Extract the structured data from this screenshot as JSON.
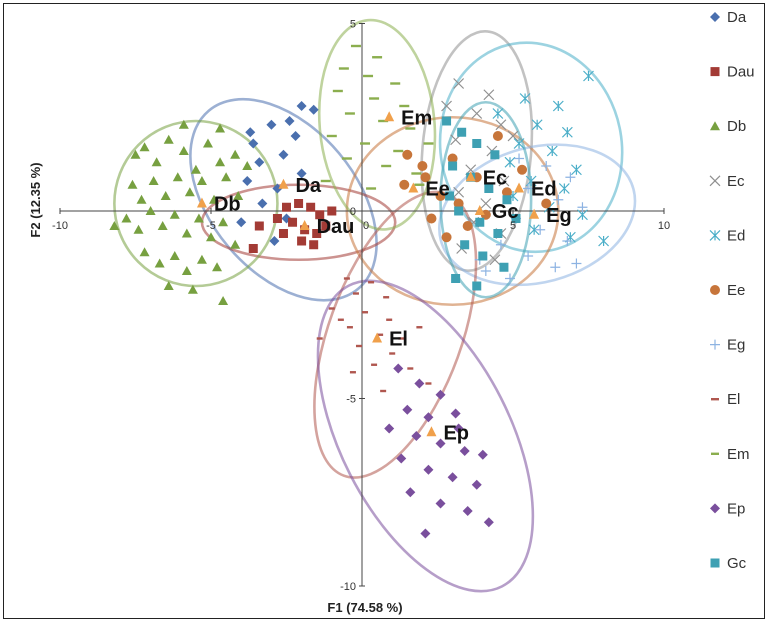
{
  "chart_data": {
    "type": "scatter",
    "xlabel": "F1 (74.58 %)",
    "ylabel": "F2 (12.35 %)",
    "xlim": [
      -10,
      10
    ],
    "ylim": [
      -10,
      5
    ],
    "x_ticks": [
      "-10",
      "-5",
      "0",
      "5",
      "10"
    ],
    "y_ticks": [
      "5",
      "0",
      "-5",
      "-10"
    ],
    "legend_position": "right",
    "series": [
      {
        "name": "Da",
        "color": "#4A6FAE",
        "marker": "diamond",
        "centroid": [
          -2.6,
          0.7
        ],
        "ellipse": {
          "cx": -2.6,
          "cy": 0.3,
          "rx": 2.4,
          "ry": 3.1,
          "angle": -40
        },
        "points": [
          [
            -2,
            2.8
          ],
          [
            -1.6,
            2.7
          ],
          [
            -2.4,
            2.4
          ],
          [
            -3,
            2.3
          ],
          [
            -2.2,
            2
          ],
          [
            -3.6,
            1.8
          ],
          [
            -2.6,
            1.5
          ],
          [
            -3.4,
            1.3
          ],
          [
            -2,
            1
          ],
          [
            -3.8,
            0.8
          ],
          [
            -2.8,
            0.6
          ],
          [
            -3.3,
            0.2
          ],
          [
            -2.5,
            -0.2
          ],
          [
            -4,
            -0.3
          ],
          [
            -2.9,
            -0.8
          ],
          [
            -3.7,
            2.1
          ]
        ]
      },
      {
        "name": "Dau",
        "color": "#A33B35",
        "marker": "square",
        "centroid": [
          -1.9,
          -0.4
        ],
        "ellipse": {
          "cx": -2.1,
          "cy": -0.3,
          "rx": 3.2,
          "ry": 1.0,
          "angle": 0
        },
        "points": [
          [
            -2.5,
            0.1
          ],
          [
            -2.1,
            0.2
          ],
          [
            -1.7,
            0.1
          ],
          [
            -1.4,
            -0.1
          ],
          [
            -2.3,
            -0.3
          ],
          [
            -1.9,
            -0.5
          ],
          [
            -1.5,
            -0.6
          ],
          [
            -2.6,
            -0.6
          ],
          [
            -2.8,
            -0.2
          ],
          [
            -1.2,
            -0.4
          ],
          [
            -2,
            -0.8
          ],
          [
            -1.6,
            -0.9
          ],
          [
            -3.4,
            -0.4
          ],
          [
            -3.6,
            -1
          ],
          [
            -1,
            0
          ]
        ]
      },
      {
        "name": "Db",
        "color": "#77A040",
        "marker": "triangle",
        "centroid": [
          -5.3,
          0.2
        ],
        "ellipse": {
          "cx": -5.5,
          "cy": 0.2,
          "rx": 2.7,
          "ry": 2.2,
          "angle": 0
        },
        "points": [
          [
            -7.5,
            1.5
          ],
          [
            -7.2,
            1.7
          ],
          [
            -6.8,
            1.3
          ],
          [
            -6.4,
            1.9
          ],
          [
            -5.9,
            1.6
          ],
          [
            -5.5,
            1.1
          ],
          [
            -5.1,
            1.8
          ],
          [
            -4.7,
            1.3
          ],
          [
            -4.2,
            1.5
          ],
          [
            -3.8,
            1.2
          ],
          [
            -7.6,
            0.7
          ],
          [
            -7.3,
            0.3
          ],
          [
            -6.9,
            0.8
          ],
          [
            -6.5,
            0.4
          ],
          [
            -6.1,
            0.9
          ],
          [
            -5.7,
            0.5
          ],
          [
            -5.3,
            0.8
          ],
          [
            -4.9,
            0.3
          ],
          [
            -4.5,
            0.9
          ],
          [
            -4.1,
            0.4
          ],
          [
            -7.8,
            -0.2
          ],
          [
            -7.4,
            -0.5
          ],
          [
            -7,
            0
          ],
          [
            -6.6,
            -0.4
          ],
          [
            -6.2,
            -0.1
          ],
          [
            -5.8,
            -0.6
          ],
          [
            -5.4,
            -0.2
          ],
          [
            -5,
            -0.7
          ],
          [
            -4.6,
            -0.3
          ],
          [
            -4.2,
            -0.9
          ],
          [
            -7.2,
            -1.1
          ],
          [
            -6.7,
            -1.4
          ],
          [
            -6.2,
            -1.2
          ],
          [
            -5.8,
            -1.6
          ],
          [
            -5.3,
            -1.3
          ],
          [
            -4.8,
            -1.5
          ],
          [
            -6.4,
            -2
          ],
          [
            -5.6,
            -2.1
          ],
          [
            -4.7,
            2.2
          ],
          [
            -5.9,
            2.3
          ],
          [
            -4.6,
            -2.4
          ],
          [
            -8.2,
            -0.4
          ]
        ]
      },
      {
        "name": "Ec",
        "color": "#8F8F8F",
        "marker": "x",
        "centroid": [
          3.6,
          0.9
        ],
        "ellipse": {
          "cx": 3.8,
          "cy": 1.6,
          "rx": 1.8,
          "ry": 3.2,
          "angle": 5
        },
        "points": [
          [
            3.2,
            3.4
          ],
          [
            4.2,
            3.1
          ],
          [
            3.8,
            2.6
          ],
          [
            4.6,
            2.3
          ],
          [
            3.1,
            1.9
          ],
          [
            4.3,
            1.6
          ],
          [
            3.6,
            1.1
          ],
          [
            4.7,
            0.8
          ],
          [
            3.2,
            0.5
          ],
          [
            4.1,
            0.2
          ],
          [
            3.7,
            -0.3
          ],
          [
            4.6,
            -0.6
          ],
          [
            3.3,
            -1
          ],
          [
            4.4,
            -1.3
          ],
          [
            5,
            2
          ],
          [
            2.8,
            2.8
          ]
        ]
      },
      {
        "name": "Ed",
        "color": "#4BAEC8",
        "marker": "asterisk",
        "centroid": [
          5.2,
          0.6
        ],
        "ellipse": {
          "cx": 5.6,
          "cy": 1.7,
          "rx": 3.0,
          "ry": 2.8,
          "angle": -10
        },
        "points": [
          [
            7.5,
            3.6
          ],
          [
            6.5,
            2.8
          ],
          [
            5.8,
            2.3
          ],
          [
            6.8,
            2.1
          ],
          [
            5.2,
            1.8
          ],
          [
            6.3,
            1.6
          ],
          [
            4.9,
            1.3
          ],
          [
            7.1,
            1.1
          ],
          [
            5.6,
            0.8
          ],
          [
            6.7,
            0.6
          ],
          [
            5,
            0.4
          ],
          [
            6.2,
            0.1
          ],
          [
            7.3,
            -0.1
          ],
          [
            5.7,
            -0.5
          ],
          [
            6.9,
            -0.7
          ],
          [
            8,
            -0.8
          ],
          [
            4.5,
            2.6
          ],
          [
            5.4,
            3
          ]
        ]
      },
      {
        "name": "Ee",
        "color": "#C7753A",
        "marker": "circle",
        "centroid": [
          1.7,
          0.6
        ],
        "ellipse": {
          "cx": 3.0,
          "cy": 0.0,
          "rx": 3.5,
          "ry": 2.5,
          "angle": 0
        },
        "points": [
          [
            1.5,
            1.5
          ],
          [
            2,
            1.2
          ],
          [
            1.4,
            0.7
          ],
          [
            2.6,
            0.4
          ],
          [
            3.2,
            0.2
          ],
          [
            2.3,
            -0.2
          ],
          [
            3.5,
            -0.4
          ],
          [
            2.8,
            -0.7
          ],
          [
            4.1,
            -0.1
          ],
          [
            4.8,
            0.5
          ],
          [
            5.3,
            1.1
          ],
          [
            6.1,
            0.2
          ],
          [
            3.8,
            0.9
          ],
          [
            4.5,
            2
          ],
          [
            2.1,
            0.9
          ],
          [
            3,
            1.4
          ]
        ]
      },
      {
        "name": "Eg",
        "color": "#8DB3E2",
        "marker": "plus",
        "centroid": [
          5.7,
          -0.1
        ],
        "ellipse": {
          "cx": 5.8,
          "cy": -0.1,
          "rx": 3.3,
          "ry": 1.8,
          "angle": -15
        },
        "points": [
          [
            5.2,
            1.4
          ],
          [
            6.1,
            1.2
          ],
          [
            6.9,
            0.9
          ],
          [
            5.5,
            0.6
          ],
          [
            6.5,
            0.3
          ],
          [
            7.3,
            0.1
          ],
          [
            5.1,
            -0.2
          ],
          [
            5.9,
            -0.5
          ],
          [
            6.8,
            -0.8
          ],
          [
            4.6,
            -0.9
          ],
          [
            5.5,
            -1.2
          ],
          [
            6.4,
            -1.5
          ],
          [
            7.1,
            -1.4
          ],
          [
            4.1,
            -1.6
          ],
          [
            4.9,
            -1.8
          ],
          [
            3.9,
            -1.3
          ]
        ]
      },
      {
        "name": "El",
        "color": "#B0574F",
        "marker": "dash",
        "centroid": [
          0.5,
          -3.4
        ],
        "ellipse": {
          "cx": 1.1,
          "cy": -3.3,
          "rx": 2.2,
          "ry": 4.0,
          "angle": 20
        },
        "points": [
          [
            -0.5,
            -1.8
          ],
          [
            0.3,
            -1.9
          ],
          [
            -0.2,
            -2.2
          ],
          [
            0.8,
            -2.3
          ],
          [
            -1,
            -2.6
          ],
          [
            0.1,
            -2.7
          ],
          [
            0.9,
            -2.9
          ],
          [
            -0.4,
            -3.1
          ],
          [
            0.6,
            -3.3
          ],
          [
            1.3,
            -3.4
          ],
          [
            -0.1,
            -3.6
          ],
          [
            1,
            -3.8
          ],
          [
            0.4,
            -4.1
          ],
          [
            1.6,
            -4.2
          ],
          [
            -0.7,
            -2.9
          ],
          [
            1.9,
            -3.1
          ],
          [
            -0.3,
            -4.3
          ],
          [
            2.2,
            -4.6
          ],
          [
            0.7,
            -4.8
          ],
          [
            -1.4,
            -3.4
          ]
        ]
      },
      {
        "name": "Em",
        "color": "#8BAE4E",
        "marker": "dash",
        "centroid": [
          0.9,
          2.5
        ],
        "ellipse": {
          "cx": 0.5,
          "cy": 2.3,
          "rx": 1.9,
          "ry": 2.8,
          "angle": -5
        },
        "points": [
          [
            -0.2,
            4.4
          ],
          [
            0.5,
            4.1
          ],
          [
            -0.6,
            3.8
          ],
          [
            0.2,
            3.6
          ],
          [
            1.1,
            3.4
          ],
          [
            -0.8,
            3.2
          ],
          [
            0.4,
            3
          ],
          [
            1.4,
            2.8
          ],
          [
            -0.4,
            2.6
          ],
          [
            0.7,
            2.4
          ],
          [
            1.6,
            2.2
          ],
          [
            -1,
            2
          ],
          [
            0.1,
            1.8
          ],
          [
            1.2,
            1.6
          ],
          [
            -0.5,
            1.4
          ],
          [
            0.8,
            1.2
          ],
          [
            1.8,
            1
          ],
          [
            -1.2,
            0.8
          ],
          [
            0.3,
            0.6
          ],
          [
            1.9,
            0.7
          ],
          [
            2.2,
            1.8
          ]
        ]
      },
      {
        "name": "Ep",
        "color": "#7A4F9D",
        "marker": "diamond",
        "centroid": [
          2.3,
          -5.9
        ],
        "ellipse": {
          "cx": 2.1,
          "cy": -6.0,
          "rx": 2.8,
          "ry": 4.5,
          "angle": -27
        },
        "points": [
          [
            1.2,
            -4.2
          ],
          [
            1.9,
            -4.6
          ],
          [
            2.6,
            -4.9
          ],
          [
            1.5,
            -5.3
          ],
          [
            2.2,
            -5.5
          ],
          [
            3.1,
            -5.4
          ],
          [
            0.9,
            -5.8
          ],
          [
            1.8,
            -6
          ],
          [
            2.6,
            -6.2
          ],
          [
            3.4,
            -6.4
          ],
          [
            1.3,
            -6.6
          ],
          [
            2.2,
            -6.9
          ],
          [
            3,
            -7.1
          ],
          [
            3.8,
            -7.3
          ],
          [
            1.6,
            -7.5
          ],
          [
            2.6,
            -7.8
          ],
          [
            3.5,
            -8
          ],
          [
            4.2,
            -8.3
          ],
          [
            2.1,
            -8.6
          ],
          [
            3.2,
            -5.8
          ],
          [
            4,
            -6.5
          ]
        ]
      },
      {
        "name": "Gc",
        "color": "#3EA0B3",
        "marker": "square",
        "centroid": [
          3.9,
          0.0
        ],
        "ellipse": {
          "cx": 4.1,
          "cy": 0.3,
          "rx": 1.5,
          "ry": 2.6,
          "angle": 0
        },
        "points": [
          [
            2.8,
            2.4
          ],
          [
            3.3,
            2.1
          ],
          [
            3.8,
            1.8
          ],
          [
            4.4,
            1.5
          ],
          [
            3,
            1.2
          ],
          [
            3.6,
            0.9
          ],
          [
            4.2,
            0.6
          ],
          [
            4.8,
            0.3
          ],
          [
            3.2,
            0
          ],
          [
            3.9,
            -0.3
          ],
          [
            4.5,
            -0.6
          ],
          [
            3.4,
            -0.9
          ],
          [
            4,
            -1.2
          ],
          [
            4.7,
            -1.5
          ],
          [
            3.1,
            -1.8
          ],
          [
            3.8,
            -2
          ],
          [
            5.1,
            -0.2
          ],
          [
            2.9,
            0.4
          ]
        ]
      }
    ]
  }
}
